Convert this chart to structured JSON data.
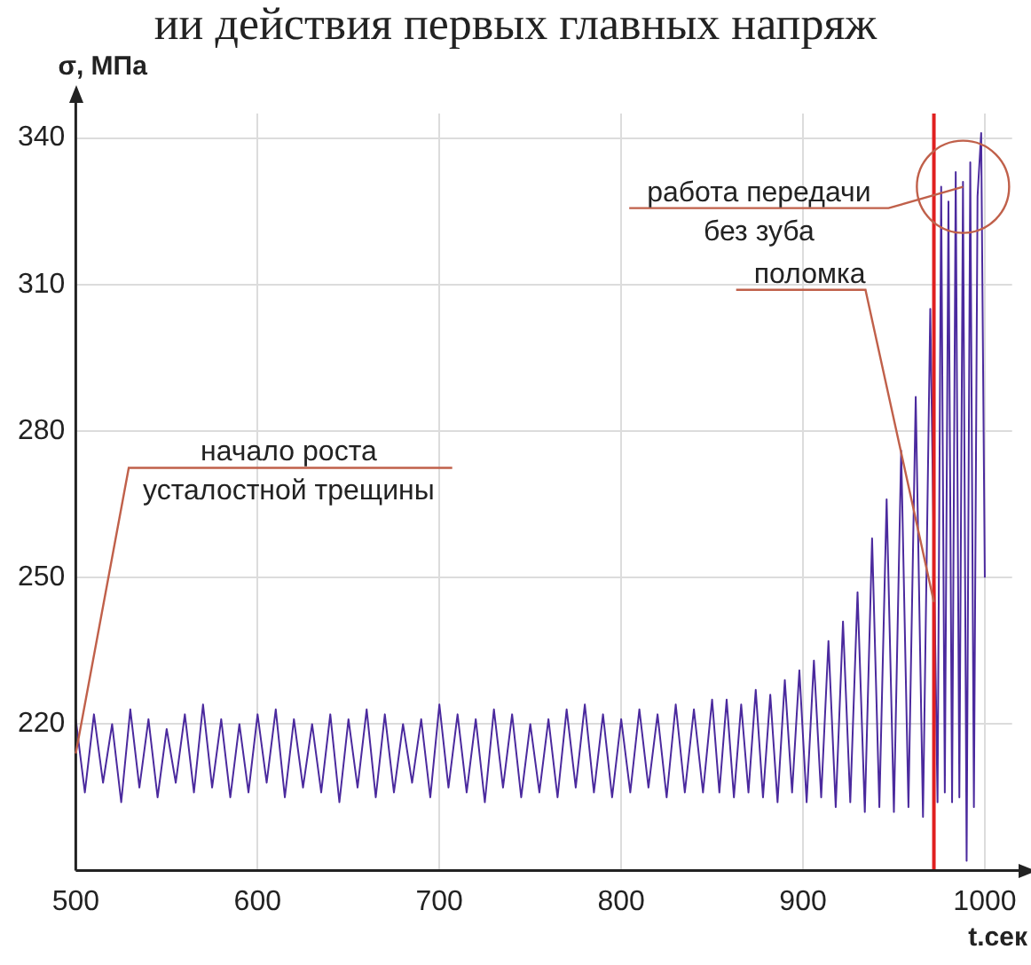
{
  "chart_data": {
    "type": "line",
    "title": "ии действия первых главных напряж",
    "xlabel": "t.сек",
    "ylabel": "σ, МПа",
    "xlim": [
      500,
      1015
    ],
    "xticks": [
      500,
      600,
      700,
      800,
      900,
      1000
    ],
    "ylim": [
      190,
      345
    ],
    "yticks": [
      220,
      250,
      280,
      310,
      340
    ],
    "grid": true,
    "legend": false,
    "marker": "none",
    "line_style": "solid",
    "ref_lines": [
      {
        "axis": "x",
        "value": 972,
        "color": "#e02020"
      }
    ],
    "annotations": [
      {
        "text": "начало роста\nусталостной трещины",
        "x": 500,
        "y": 214
      },
      {
        "text": "поломка",
        "x": 972,
        "y": 245
      },
      {
        "text": "работа передачи\nбез зуба",
        "x": 988,
        "y": 330
      }
    ],
    "series": [
      {
        "color": "#4b2a9e",
        "x": [
          500,
          505,
          510,
          515,
          520,
          525,
          530,
          535,
          540,
          545,
          550,
          555,
          560,
          565,
          570,
          575,
          580,
          585,
          590,
          595,
          600,
          605,
          610,
          615,
          620,
          625,
          630,
          635,
          640,
          645,
          650,
          655,
          660,
          665,
          670,
          675,
          680,
          685,
          690,
          695,
          700,
          705,
          710,
          715,
          720,
          725,
          730,
          735,
          740,
          745,
          750,
          755,
          760,
          765,
          770,
          775,
          780,
          785,
          790,
          795,
          800,
          805,
          810,
          815,
          820,
          825,
          830,
          835,
          840,
          845,
          850,
          854,
          858,
          862,
          866,
          870,
          874,
          878,
          882,
          886,
          890,
          894,
          898,
          902,
          906,
          910,
          914,
          918,
          922,
          926,
          930,
          934,
          938,
          942,
          946,
          950,
          954,
          958,
          962,
          966,
          970,
          974,
          976,
          978,
          980,
          982,
          984,
          986,
          988,
          990,
          992,
          994,
          996,
          998,
          1000
        ],
        "values": [
          221,
          206,
          222,
          208,
          220,
          204,
          223,
          207,
          221,
          205,
          219,
          208,
          222,
          206,
          224,
          207,
          221,
          205,
          220,
          206,
          222,
          208,
          223,
          205,
          221,
          207,
          220,
          206,
          222,
          204,
          221,
          207,
          223,
          205,
          222,
          206,
          220,
          208,
          221,
          205,
          224,
          207,
          222,
          206,
          221,
          204,
          223,
          207,
          222,
          205,
          220,
          206,
          221,
          205,
          223,
          207,
          224,
          206,
          222,
          205,
          221,
          206,
          223,
          207,
          222,
          205,
          224,
          206,
          223,
          206,
          225,
          206,
          225,
          205,
          224,
          206,
          227,
          205,
          226,
          204,
          229,
          206,
          231,
          204,
          233,
          205,
          237,
          203,
          241,
          204,
          247,
          202,
          258,
          203,
          266,
          202,
          276,
          203,
          287,
          201,
          305,
          204,
          330,
          206,
          327,
          204,
          333,
          205,
          331,
          192,
          335,
          203,
          328,
          341,
          250
        ]
      }
    ]
  }
}
